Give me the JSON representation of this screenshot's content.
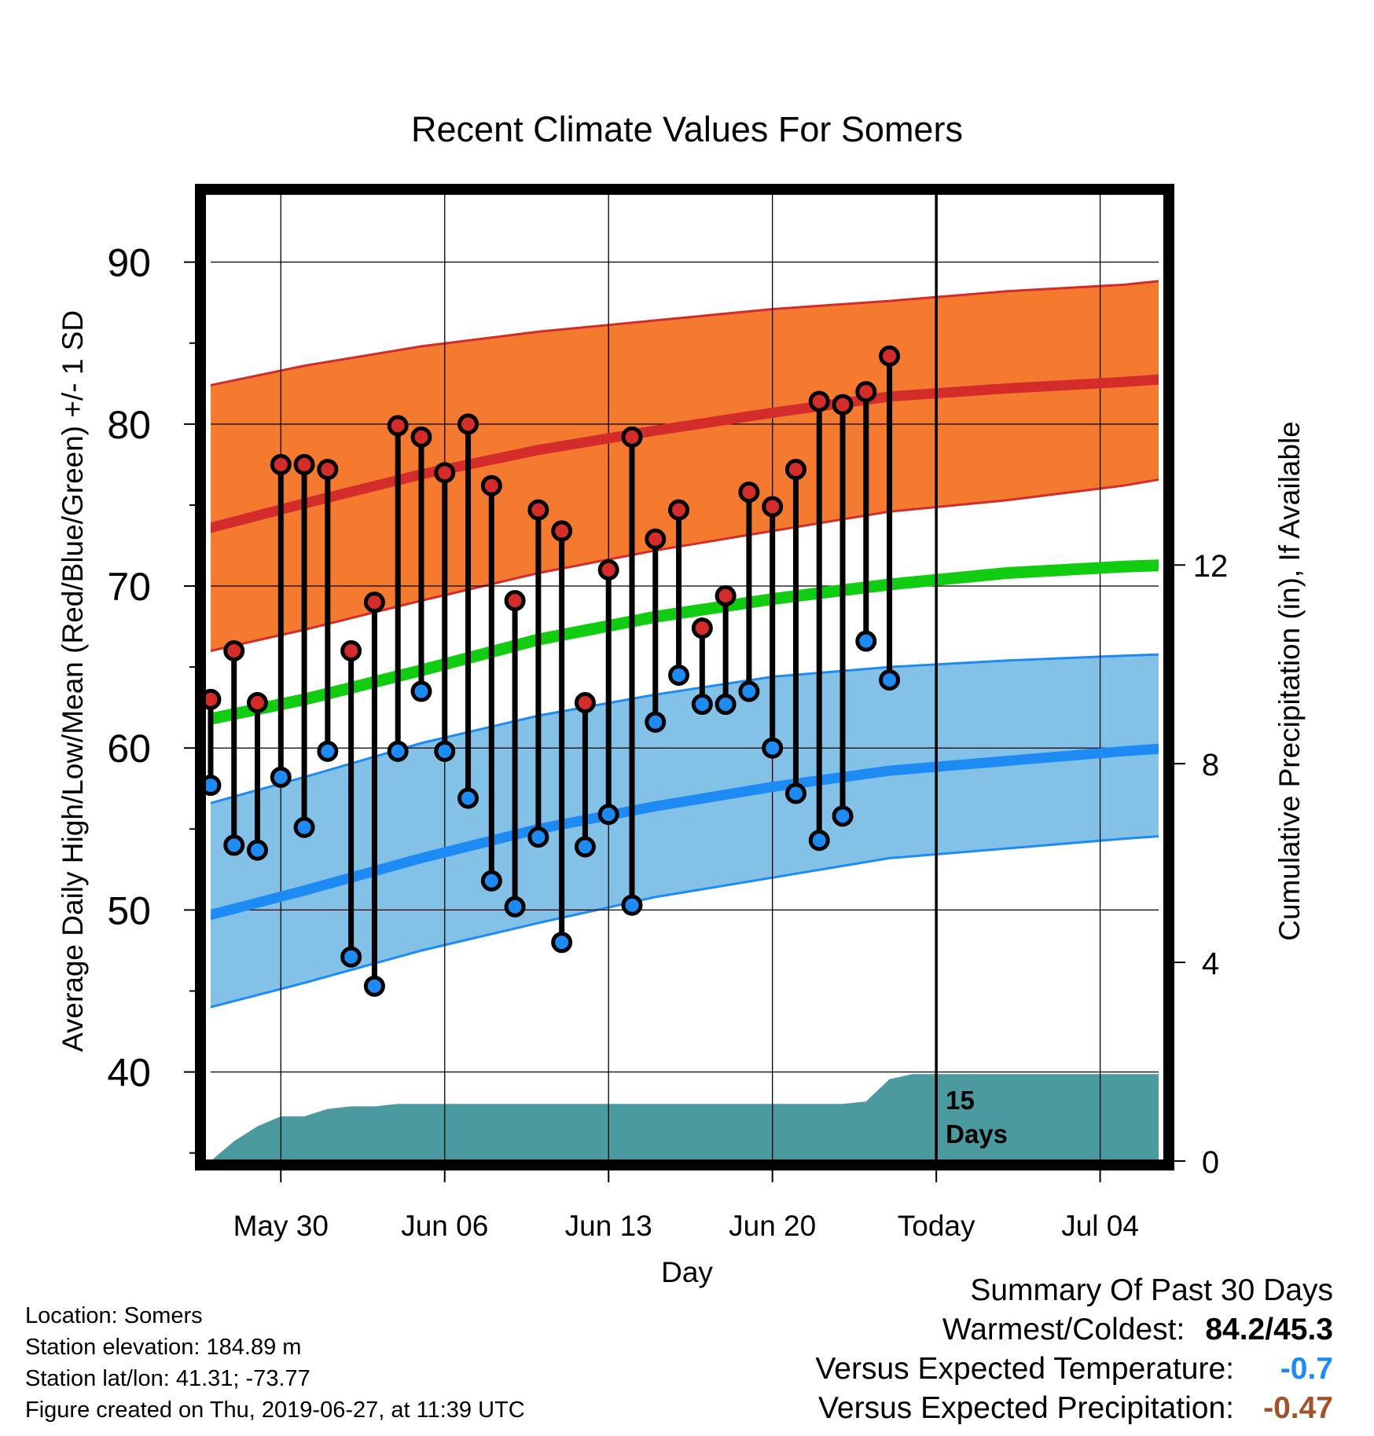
{
  "chart_data": {
    "type": "line",
    "title": "Recent Climate Values For Somers",
    "xlabel": "Day",
    "ylabel": "Average Daily High/Low/Mean (Red/Blue/Green) +/- 1 SD",
    "y2label": "Cumulative Precipitation (in), If Available",
    "x_ticks": [
      {
        "day": 4,
        "label": "May 30"
      },
      {
        "day": 11,
        "label": "Jun 06"
      },
      {
        "day": 18,
        "label": "Jun 13"
      },
      {
        "day": 25,
        "label": "Jun 20"
      },
      {
        "day": 32,
        "label": "Today"
      },
      {
        "day": 39,
        "label": "Jul 04"
      }
    ],
    "xlim": [
      0.8,
      41.7
    ],
    "ylim": [
      34.5,
      94.3
    ],
    "y_ticks": [
      40,
      50,
      60,
      70,
      80,
      90
    ],
    "y2lim": [
      0,
      19.5
    ],
    "y2_ticks": [
      0,
      4,
      8,
      12
    ],
    "today_day": 32,
    "today_note": "15 Days",
    "grid": true,
    "colors": {
      "high_band": "#f47a30",
      "high_line": "#d42b2b",
      "low_band": "#84c1e7",
      "low_line": "#1e8bf5",
      "mean_line": "#11cc11",
      "precip": "#4a9aa0",
      "high_dot": "#d42b2b",
      "low_dot": "#1e8bf5"
    },
    "normals": {
      "days": [
        1,
        5,
        10,
        15,
        20,
        25,
        30,
        35,
        40,
        42
      ],
      "high_mean": [
        73.6,
        75.1,
        76.9,
        78.4,
        79.6,
        80.7,
        81.7,
        82.2,
        82.6,
        82.8
      ],
      "high_upper": [
        82.4,
        83.6,
        84.8,
        85.7,
        86.4,
        87.1,
        87.6,
        88.2,
        88.6,
        88.9
      ],
      "high_lower": [
        66.0,
        67.3,
        69.1,
        70.8,
        72.2,
        73.4,
        74.6,
        75.3,
        76.2,
        76.7
      ],
      "low_mean": [
        49.7,
        51.2,
        53.2,
        55.0,
        56.4,
        57.6,
        58.6,
        59.2,
        59.8,
        60.0
      ],
      "low_upper": [
        56.6,
        58.2,
        60.3,
        62.0,
        63.3,
        64.4,
        65.0,
        65.4,
        65.7,
        65.8
      ],
      "low_lower": [
        44.0,
        45.5,
        47.5,
        49.2,
        50.8,
        52.0,
        53.2,
        53.8,
        54.4,
        54.6
      ],
      "mean": [
        61.8,
        63.0,
        64.8,
        66.7,
        68.1,
        69.2,
        70.1,
        70.8,
        71.2,
        71.3
      ]
    },
    "series": [
      {
        "name": "Red",
        "days": [
          1,
          2,
          3,
          4,
          5,
          6,
          7,
          8,
          9,
          10,
          11,
          12,
          13,
          14,
          15,
          16,
          17,
          18,
          19,
          20,
          21,
          22,
          23,
          24,
          25,
          26,
          27,
          28,
          29,
          30,
          31
        ],
        "values": [
          63.0,
          66.0,
          62.8,
          77.5,
          77.5,
          77.2,
          66.0,
          69.0,
          79.9,
          79.2,
          77.0,
          80.0,
          76.2,
          69.1,
          74.7,
          73.4,
          62.8,
          71.0,
          79.2,
          72.9,
          74.7,
          67.4,
          69.4,
          75.8,
          74.9,
          77.2,
          81.4,
          81.2,
          82.0,
          84.2,
          null
        ]
      },
      {
        "name": "Blue",
        "days": [
          1,
          2,
          3,
          4,
          5,
          6,
          7,
          8,
          9,
          10,
          11,
          12,
          13,
          14,
          15,
          16,
          17,
          18,
          19,
          20,
          21,
          22,
          23,
          24,
          25,
          26,
          27,
          28,
          29,
          30,
          31
        ],
        "values": [
          57.7,
          54.0,
          53.7,
          58.2,
          55.1,
          59.8,
          47.1,
          45.3,
          59.8,
          63.5,
          59.8,
          56.9,
          51.8,
          50.2,
          54.5,
          48.0,
          53.9,
          55.9,
          50.3,
          61.6,
          64.5,
          62.7,
          62.7,
          63.5,
          60.0,
          57.2,
          54.3,
          55.8,
          66.6,
          64.2,
          null
        ]
      }
    ],
    "precip": {
      "days": [
        1,
        2,
        3,
        4,
        5,
        6,
        7,
        8,
        9,
        26,
        27,
        28,
        29,
        30,
        31,
        41.7
      ],
      "values": [
        0.0,
        0.4,
        0.7,
        0.9,
        0.9,
        1.05,
        1.1,
        1.1,
        1.15,
        1.15,
        1.15,
        1.15,
        1.2,
        1.65,
        1.75,
        1.75
      ]
    }
  },
  "footer": {
    "location": "Location: Somers",
    "elevation": "Station elevation: 184.89 m",
    "latlon": "Station lat/lon: 41.31; -73.77",
    "created": "Figure created on Thu, 2019-06-27, at 11:39 UTC"
  },
  "summary": {
    "heading": "Summary Of Past 30 Days",
    "warmest_label": "Warmest/Coldest:",
    "warmest_value": "84.2/45.3",
    "temp_label": "Versus Expected Temperature:",
    "temp_value": "-0.7",
    "temp_color": "#1e8bf5",
    "precip_label": "Versus Expected Precipitation:",
    "precip_value": "-0.47",
    "precip_color": "#a0522d"
  }
}
